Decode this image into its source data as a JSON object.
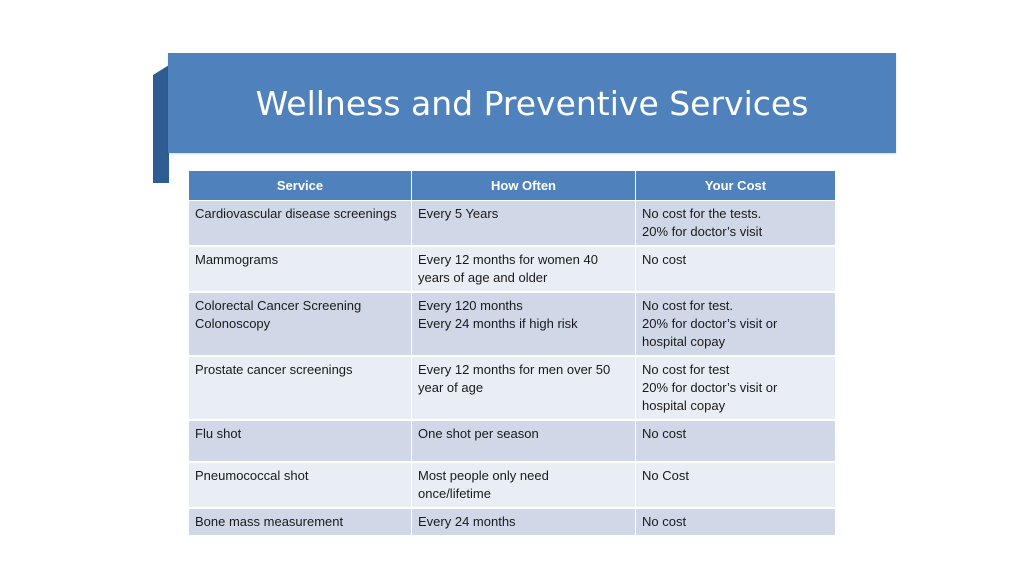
{
  "title": "Wellness and Preventive Services",
  "table": {
    "headers": [
      "Service",
      "How Often",
      "Your Cost"
    ],
    "rows": [
      {
        "service": [
          "Cardiovascular disease screenings"
        ],
        "how_often": [
          "Every 5 Years"
        ],
        "cost": [
          "No cost for the tests.",
          "20% for doctor’s visit"
        ]
      },
      {
        "service": [
          "Mammograms"
        ],
        "how_often": [
          "Every 12 months for women 40",
          "years of age and older"
        ],
        "cost": [
          "No cost"
        ]
      },
      {
        "service": [
          "Colorectal Cancer Screening",
          "Colonoscopy"
        ],
        "how_often": [
          "Every 120 months",
          "Every 24 months if high risk"
        ],
        "cost": [
          "No cost for test.",
          "20% for doctor’s visit or",
          "hospital copay"
        ]
      },
      {
        "service": [
          "Prostate cancer screenings"
        ],
        "how_often": [
          "Every 12 months for men over 50",
          "year of age"
        ],
        "cost": [
          "No cost for test",
          "20% for doctor’s visit or",
          "hospital copay"
        ]
      },
      {
        "service": [
          "Flu shot"
        ],
        "how_often": [
          "One shot per season"
        ],
        "cost": [
          "No cost"
        ]
      },
      {
        "service": [
          "Pneumococcal shot"
        ],
        "how_often": [
          "Most people only need",
          "once/lifetime"
        ],
        "cost": [
          "No Cost"
        ]
      },
      {
        "service": [
          "Bone mass measurement"
        ],
        "how_often": [
          "Every 24 months"
        ],
        "cost": [
          "No cost"
        ]
      }
    ]
  },
  "colors": {
    "accent": "#4f81bd",
    "accent_dark": "#2f5d93",
    "row_odd": "#d0d8e8",
    "row_even": "#e9edf4"
  }
}
